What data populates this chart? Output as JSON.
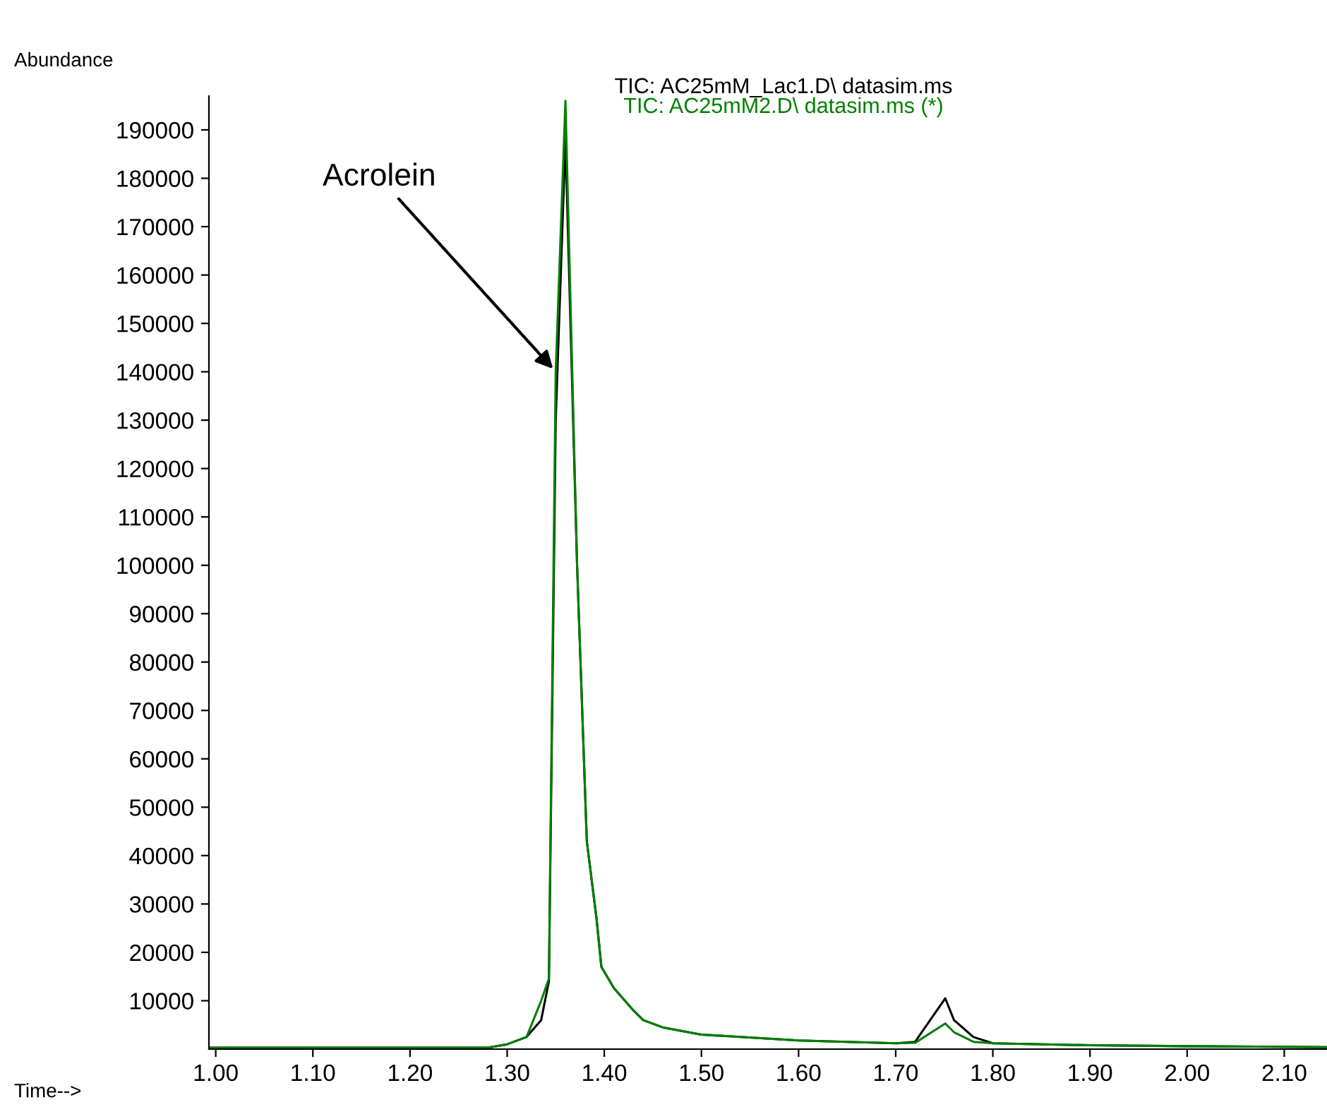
{
  "chart_data": {
    "type": "line",
    "xlabel": "Time-->",
    "ylabel": "Abundance",
    "xlim": [
      0.993,
      2.144
    ],
    "ylim": [
      0,
      197000
    ],
    "xticks": [
      {
        "value": 1.0,
        "label": "1.00"
      },
      {
        "value": 1.1,
        "label": "1.10"
      },
      {
        "value": 1.2,
        "label": "1.20"
      },
      {
        "value": 1.3,
        "label": "1.30"
      },
      {
        "value": 1.4,
        "label": "1.40"
      },
      {
        "value": 1.5,
        "label": "1.50"
      },
      {
        "value": 1.6,
        "label": "1.60"
      },
      {
        "value": 1.7,
        "label": "1.70"
      },
      {
        "value": 1.8,
        "label": "1.80"
      },
      {
        "value": 1.9,
        "label": "1.90"
      },
      {
        "value": 2.0,
        "label": "2.00"
      },
      {
        "value": 2.1,
        "label": "2.10"
      }
    ],
    "yticks": [
      10000,
      20000,
      30000,
      40000,
      50000,
      60000,
      70000,
      80000,
      90000,
      100000,
      110000,
      120000,
      130000,
      140000,
      150000,
      160000,
      170000,
      180000,
      190000
    ],
    "grid": false,
    "marker": "none",
    "line_style": "solid",
    "annotations": [
      {
        "text": "Acrolein",
        "x": 1.35,
        "y": 140000
      }
    ],
    "series": [
      {
        "name": "TIC: AC25mM_Lac1.D\\ datasim.ms",
        "color": "#000000",
        "x": [
          0.993,
          1.28,
          1.3,
          1.32,
          1.335,
          1.343,
          1.35,
          1.36,
          1.372,
          1.382,
          1.392,
          1.397,
          1.41,
          1.43,
          1.44,
          1.46,
          1.5,
          1.6,
          1.7,
          1.72,
          1.751,
          1.76,
          1.78,
          1.8,
          1.9,
          2.0,
          2.144
        ],
        "values": [
          300,
          300,
          1000,
          2500,
          6000,
          14000,
          130000,
          188000,
          100000,
          43000,
          27000,
          17000,
          12600,
          8000,
          6000,
          4500,
          3000,
          1800,
          1200,
          1500,
          10500,
          6000,
          2500,
          1200,
          800,
          600,
          400
        ]
      },
      {
        "name": "TIC: AC25mM2.D\\ datasim.ms (*)",
        "color": "#008000",
        "x": [
          0.993,
          1.28,
          1.3,
          1.32,
          1.335,
          1.343,
          1.35,
          1.36,
          1.372,
          1.382,
          1.392,
          1.397,
          1.41,
          1.43,
          1.44,
          1.46,
          1.5,
          1.6,
          1.7,
          1.72,
          1.751,
          1.76,
          1.78,
          1.8,
          1.9,
          2.0,
          2.144
        ],
        "values": [
          300,
          300,
          1000,
          2500,
          10000,
          14600,
          140000,
          196000,
          100000,
          43000,
          27000,
          17000,
          12600,
          8000,
          6000,
          4500,
          3000,
          1800,
          1200,
          1300,
          5300,
          3500,
          1500,
          1200,
          800,
          600,
          400
        ]
      }
    ]
  }
}
